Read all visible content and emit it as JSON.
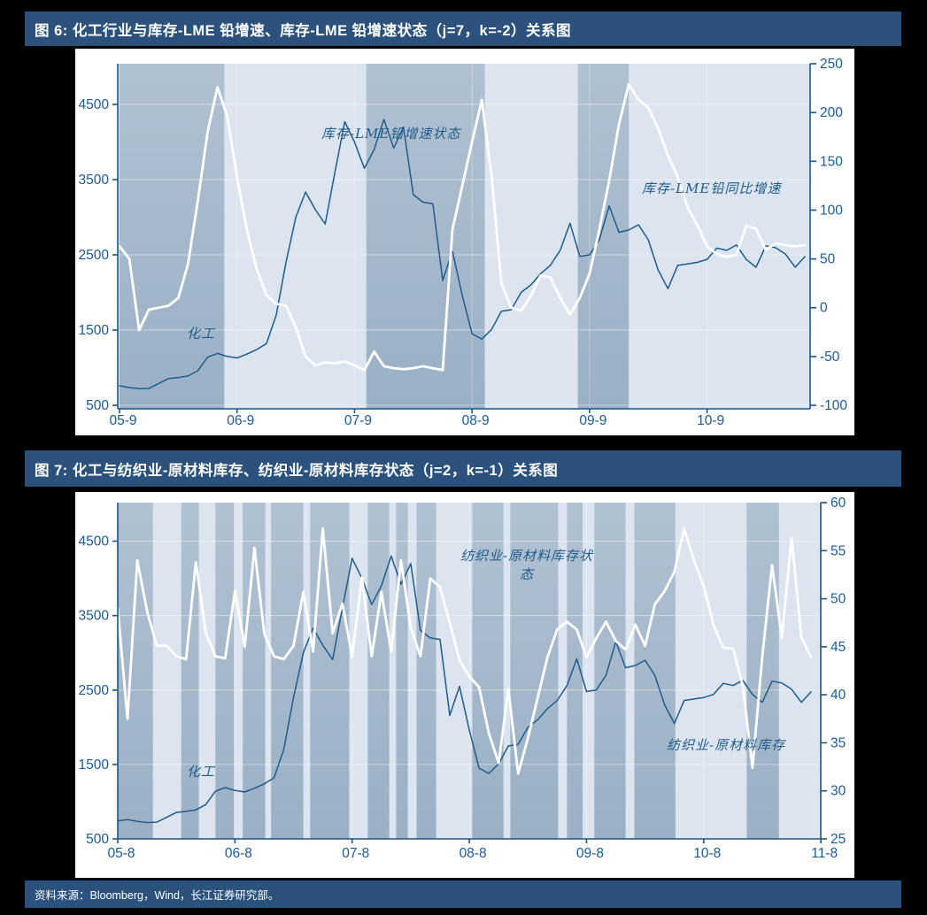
{
  "figure6": {
    "title": "图 6:  化工行业与库存-LME 铅增速、库存-LME 铅增速状态（j=7，k=-2）关系图",
    "labels": {
      "state": "库存-LME铅增速状态",
      "white": "库存-LME铅同比增速",
      "blue": "化工"
    }
  },
  "figure7": {
    "title": "图 7:  化工与纺织业-原材料库存、纺织业-原材料库存状态（j=2，k=-1）关系图",
    "labels": {
      "state": "纺织业-原材料库存状\n态",
      "white": "纺织业-原材料库存",
      "blue": "化工"
    }
  },
  "source": {
    "text": "资料来源：Bloomberg，Wind，长江证券研究部。"
  },
  "colors": {
    "title_bar": "#2a527c",
    "band_dark": "#a3b7ca",
    "band_dark_top": "#b0c1d1",
    "band_dark_bottom": "#9bb0c5",
    "band_light": "#dbe4ef",
    "axis_line": "#17568e",
    "tick_text": "#1b5a97",
    "line_blue": "#1f5c8b",
    "line_white": "#ffffff",
    "grid_line": "rgba(255,255,255,0.45)"
  },
  "chart_data": [
    {
      "type": "line",
      "title": "图 6: 化工行业与库存-LME 铅增速、库存-LME 铅增速状态（j=7，k=-2）关系图",
      "x_unit": "month",
      "x_start": "2005-09",
      "x_tick_labels": [
        "05-9",
        "06-9",
        "07-9",
        "08-9",
        "09-9",
        "10-9"
      ],
      "x_tick_months": [
        0,
        12,
        24,
        36,
        48,
        60
      ],
      "left_axis": {
        "label": "化工",
        "ticks": [
          500,
          1500,
          2500,
          3500,
          4500
        ],
        "range": [
          500,
          5000
        ]
      },
      "right_axis": {
        "label": "库存-LME铅同比增速",
        "ticks": [
          250,
          200,
          150,
          100,
          50,
          0,
          -50,
          -100
        ],
        "range": [
          -100,
          250
        ]
      },
      "grid": true,
      "legend_position": "annotations-inside-plot",
      "series": [
        {
          "name": "化工",
          "axis": "left",
          "color": "#1f5c8b",
          "values": [
            760,
            735,
            720,
            725,
            790,
            855,
            870,
            890,
            960,
            1140,
            1190,
            1150,
            1130,
            1180,
            1240,
            1320,
            1700,
            2400,
            3000,
            3335,
            3100,
            2910,
            3600,
            4270,
            4000,
            3650,
            3900,
            4300,
            3920,
            4200,
            3300,
            3200,
            3180,
            2160,
            2550,
            1960,
            1450,
            1380,
            1510,
            1750,
            1770,
            2000,
            2100,
            2250,
            2360,
            2560,
            2920,
            2480,
            2500,
            2700,
            3150,
            2800,
            2830,
            2900,
            2700,
            2300,
            2050,
            2360,
            2380,
            2400,
            2440,
            2590,
            2560,
            2630,
            2440,
            2335,
            2620,
            2595,
            2510,
            2335,
            2476
          ]
        },
        {
          "name": "库存-LME铅同比增速",
          "axis": "right",
          "color": "#ffffff",
          "values": [
            63,
            50,
            -23,
            -2,
            0,
            2,
            10,
            45,
            110,
            180,
            226,
            196,
            134,
            80,
            40,
            13,
            4,
            2,
            -20,
            -50,
            -59,
            -56,
            -57,
            -55,
            -59,
            -64,
            -45,
            -60,
            -62,
            -63,
            -62,
            -60,
            -62,
            -64,
            80,
            125,
            170,
            213,
            134,
            25,
            0,
            -3,
            12,
            33,
            31,
            10,
            -7,
            10,
            35,
            80,
            130,
            188,
            229,
            213,
            205,
            184,
            156,
            134,
            103,
            85,
            63,
            55,
            52,
            54,
            84,
            81,
            59,
            66,
            64,
            63,
            64
          ]
        }
      ],
      "state_bands": {
        "name": "库存-LME铅增速状态",
        "style": "dark shaded vertical regions",
        "month_ranges": [
          [
            0,
            10.7
          ],
          [
            25.2,
            37.3
          ],
          [
            46.8,
            52
          ]
        ]
      }
    },
    {
      "type": "line",
      "title": "图 7: 化工与纺织业-原材料库存、纺织业-原材料库存状态（j=2，k=-1）关系图",
      "x_unit": "month",
      "x_start": "2005-08",
      "x_tick_labels": [
        "05-8",
        "06-8",
        "07-8",
        "08-8",
        "09-8",
        "10-8",
        "11-8"
      ],
      "x_tick_months": [
        0,
        12,
        24,
        36,
        48,
        60,
        72
      ],
      "left_axis": {
        "label": "化工",
        "ticks": [
          500,
          1500,
          2500,
          3500,
          4500
        ],
        "range": [
          500,
          5000
        ]
      },
      "right_axis": {
        "label": "纺织业-原材料库存",
        "ticks": [
          60,
          55,
          50,
          45,
          40,
          35,
          30,
          25
        ],
        "range": [
          25,
          60
        ]
      },
      "grid": true,
      "legend_position": "annotations-inside-plot",
      "series": [
        {
          "name": "化工",
          "axis": "left",
          "color": "#1f5c8b",
          "values": [
            740,
            760,
            735,
            720,
            725,
            790,
            855,
            870,
            890,
            960,
            1140,
            1190,
            1150,
            1130,
            1180,
            1240,
            1320,
            1700,
            2400,
            3000,
            3335,
            3100,
            2910,
            3600,
            4270,
            4000,
            3650,
            3900,
            4300,
            3920,
            4200,
            3300,
            3200,
            3180,
            2160,
            2550,
            1960,
            1450,
            1380,
            1510,
            1750,
            1770,
            2000,
            2100,
            2250,
            2360,
            2560,
            2920,
            2480,
            2500,
            2700,
            3150,
            2800,
            2830,
            2900,
            2700,
            2300,
            2050,
            2360,
            2380,
            2400,
            2440,
            2590,
            2560,
            2630,
            2440,
            2335,
            2620,
            2595,
            2510,
            2335,
            2476
          ]
        },
        {
          "name": "纺织业-原材料库存",
          "axis": "right",
          "color": "#ffffff",
          "values": [
            49,
            37.5,
            54,
            48.7,
            45.1,
            45.1,
            44,
            43.7,
            53.8,
            46.5,
            44,
            43.8,
            50.8,
            45,
            55.3,
            46.4,
            44,
            43.7,
            45.1,
            50.7,
            44.5,
            57.3,
            46.4,
            49.5,
            44,
            52.2,
            44,
            50.7,
            44.5,
            54,
            47,
            44,
            52.1,
            51.2,
            47.5,
            43.6,
            41.9,
            40.8,
            36,
            32.9,
            40.6,
            31.8,
            35.5,
            39.7,
            43.9,
            46.8,
            47.6,
            46.8,
            43.9,
            45.9,
            47.6,
            45.6,
            44.7,
            47.3,
            45.1,
            49.4,
            50.8,
            52.8,
            57.3,
            54,
            51.3,
            47.3,
            44.9,
            44.8,
            41,
            32.4,
            44,
            53.5,
            45.9,
            56.3,
            46,
            43.9
          ]
        }
      ],
      "state_bands": {
        "name": "纺织业-原材料库存状态",
        "style": "dark shaded vertical regions",
        "month_ranges": [
          [
            0,
            3.6
          ],
          [
            6.5,
            8.3
          ],
          [
            10,
            11.9
          ],
          [
            12.8,
            15.1
          ],
          [
            15.7,
            19
          ],
          [
            19.7,
            23.7
          ],
          [
            25.6,
            27.8
          ],
          [
            28.5,
            29.7
          ],
          [
            30.6,
            32.6
          ],
          [
            36.3,
            39.5
          ],
          [
            40.2,
            45.1
          ],
          [
            46,
            47.6
          ],
          [
            48.8,
            52
          ],
          [
            52.9,
            57.1
          ],
          [
            64.4,
            67.7
          ]
        ]
      }
    }
  ]
}
